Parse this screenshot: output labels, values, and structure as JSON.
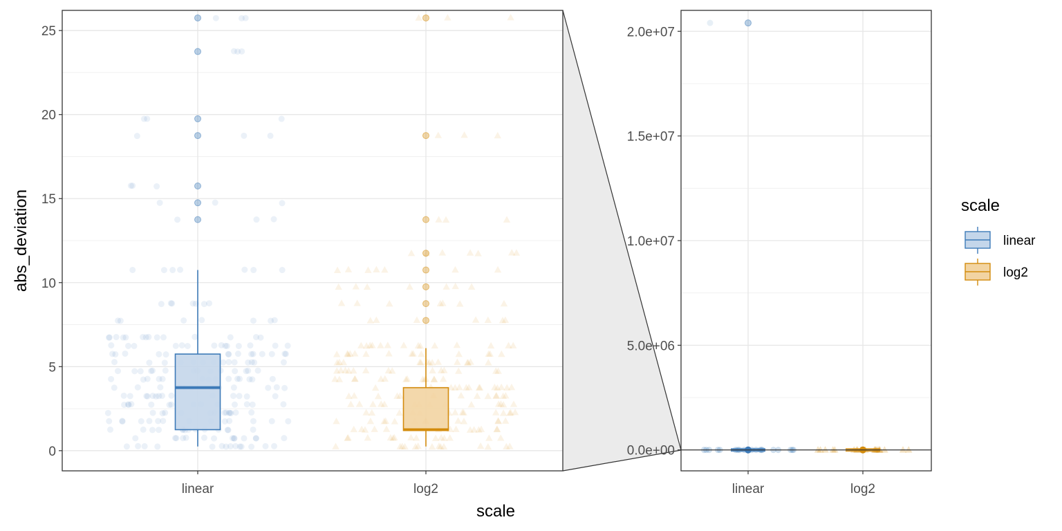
{
  "chart_data": [
    {
      "type": "box",
      "panel": "main",
      "xlabel": "scale",
      "ylabel": "abs_deviation",
      "categories": [
        "linear",
        "log2"
      ],
      "ylim": [
        -1.2,
        26.2
      ],
      "yticks": [
        0,
        5,
        10,
        15,
        20,
        25
      ],
      "ytick_labels": [
        "0",
        "5",
        "10",
        "15",
        "20",
        "25"
      ],
      "grid": true,
      "series": [
        {
          "name": "linear",
          "category": "linear",
          "color": "#3d7ab8",
          "fill": "#c4d6ea",
          "marker": "circle",
          "box": {
            "q1": 1.25,
            "median": 3.75,
            "q3": 5.75,
            "whisker_low": 0.25,
            "whisker_high": 10.75
          },
          "outliers": [
            13.75,
            14.75,
            15.75,
            18.75,
            19.75,
            23.75,
            25.75
          ],
          "jitter_levels": [
            0.25,
            0.75,
            1.25,
            1.75,
            2.25,
            2.75,
            3.25,
            3.75,
            4.25,
            4.75,
            5.25,
            5.75,
            6.25,
            6.75,
            7.75,
            8.75,
            10.75,
            13.75,
            14.75,
            15.75,
            18.75,
            19.75,
            23.75,
            25.75
          ]
        },
        {
          "name": "log2",
          "category": "log2",
          "color": "#d38b0c",
          "fill": "#f2d4a2",
          "marker": "triangle",
          "box": {
            "q1": 1.2,
            "median": 1.25,
            "q3": 3.75,
            "whisker_low": 0.25,
            "whisker_high": 6.1
          },
          "outliers": [
            7.75,
            8.75,
            9.75,
            10.75,
            11.75,
            13.75,
            18.75,
            25.75
          ],
          "jitter_levels": [
            0.25,
            0.75,
            1.25,
            1.75,
            2.25,
            2.75,
            3.25,
            3.75,
            4.25,
            4.75,
            5.25,
            5.75,
            6.25,
            7.75,
            8.75,
            9.75,
            10.75,
            11.75,
            13.75,
            18.75,
            25.75
          ]
        }
      ]
    },
    {
      "type": "box",
      "panel": "zoom-out",
      "xlabel": "",
      "ylabel": "",
      "categories": [
        "linear",
        "log2"
      ],
      "ylim": [
        -1000000,
        21000000
      ],
      "yticks": [
        0,
        5000000,
        10000000,
        15000000,
        20000000
      ],
      "ytick_labels": [
        "0.0e+00",
        "5.0e+06",
        "1.0e+07",
        "1.5e+07",
        "2.0e+07"
      ],
      "grid": true,
      "series": [
        {
          "name": "linear",
          "category": "linear",
          "color": "#3d7ab8",
          "fill": "#c4d6ea",
          "marker": "circle",
          "outliers": [
            20400000
          ]
        },
        {
          "name": "log2",
          "category": "log2",
          "color": "#d38b0c",
          "fill": "#f2d4a2",
          "marker": "triangle",
          "outliers": []
        }
      ]
    }
  ],
  "legend": {
    "title": "scale",
    "position": "right",
    "items": [
      {
        "label": "linear",
        "color": "#3d7ab8",
        "fill": "#c4d6ea"
      },
      {
        "label": "log2",
        "color": "#d38b0c",
        "fill": "#f2d4a2"
      }
    ]
  }
}
